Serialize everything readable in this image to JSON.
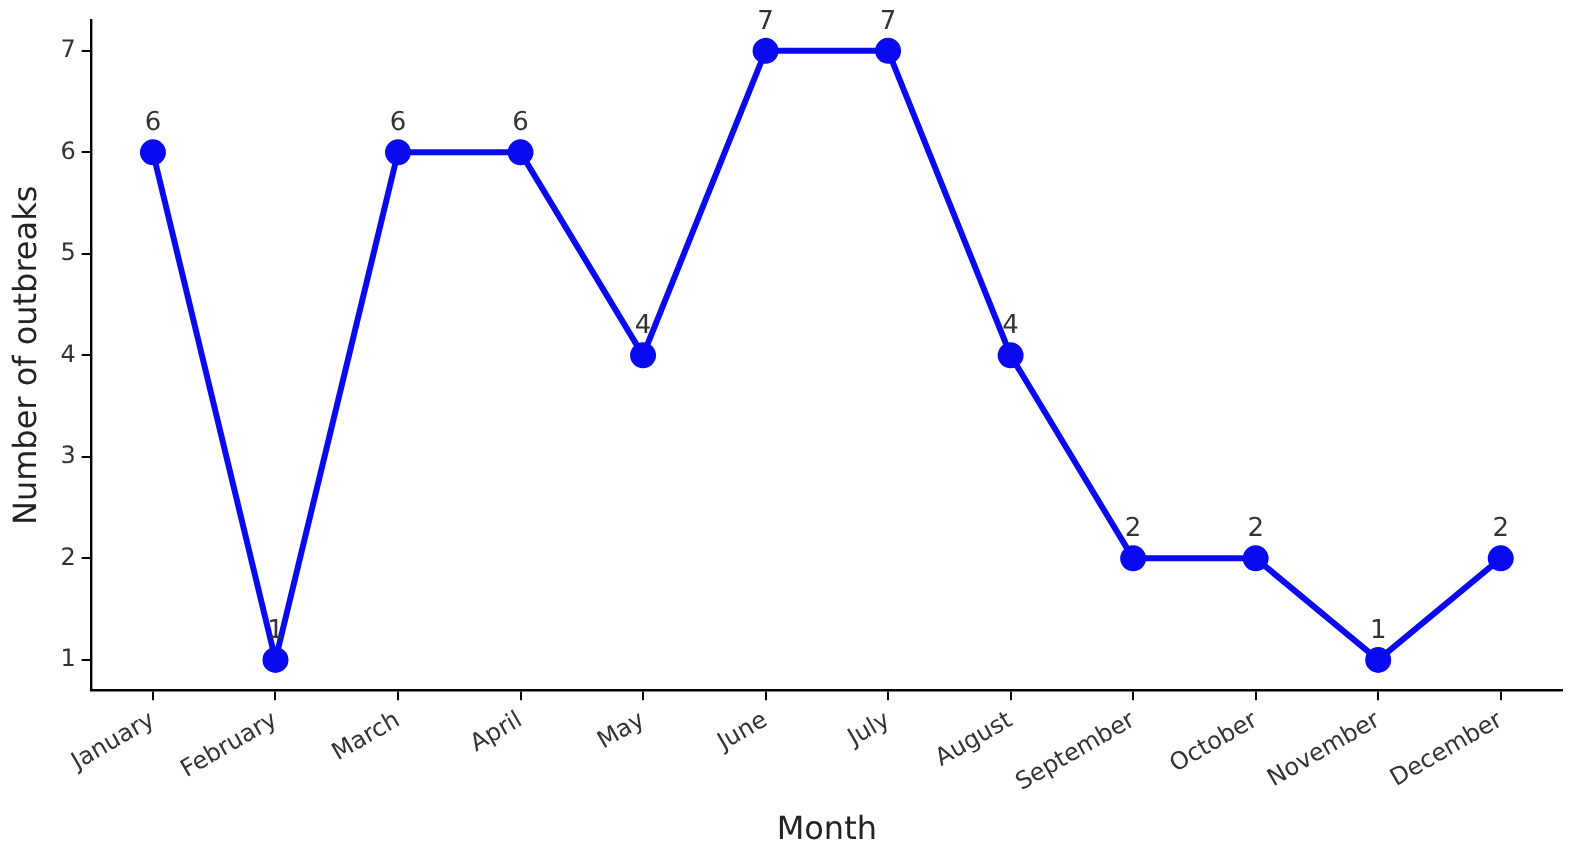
{
  "chart_data": {
    "type": "line",
    "xlabel": "Month",
    "ylabel": "Number of outbreaks",
    "categories": [
      "January",
      "February",
      "March",
      "April",
      "May",
      "June",
      "July",
      "August",
      "September",
      "October",
      "November",
      "December"
    ],
    "series": [
      {
        "color": "#0a0af0",
        "values": [
          6,
          1,
          6,
          6,
          4,
          7,
          7,
          4,
          2,
          2,
          1,
          2
        ]
      }
    ],
    "ylim": [
      0.7,
      7.3
    ],
    "yticks": [
      1,
      2,
      3,
      4,
      5,
      6,
      7
    ],
    "grid": false,
    "legend": false,
    "marker": "circle",
    "line_style": "solid",
    "data_labels": true
  }
}
